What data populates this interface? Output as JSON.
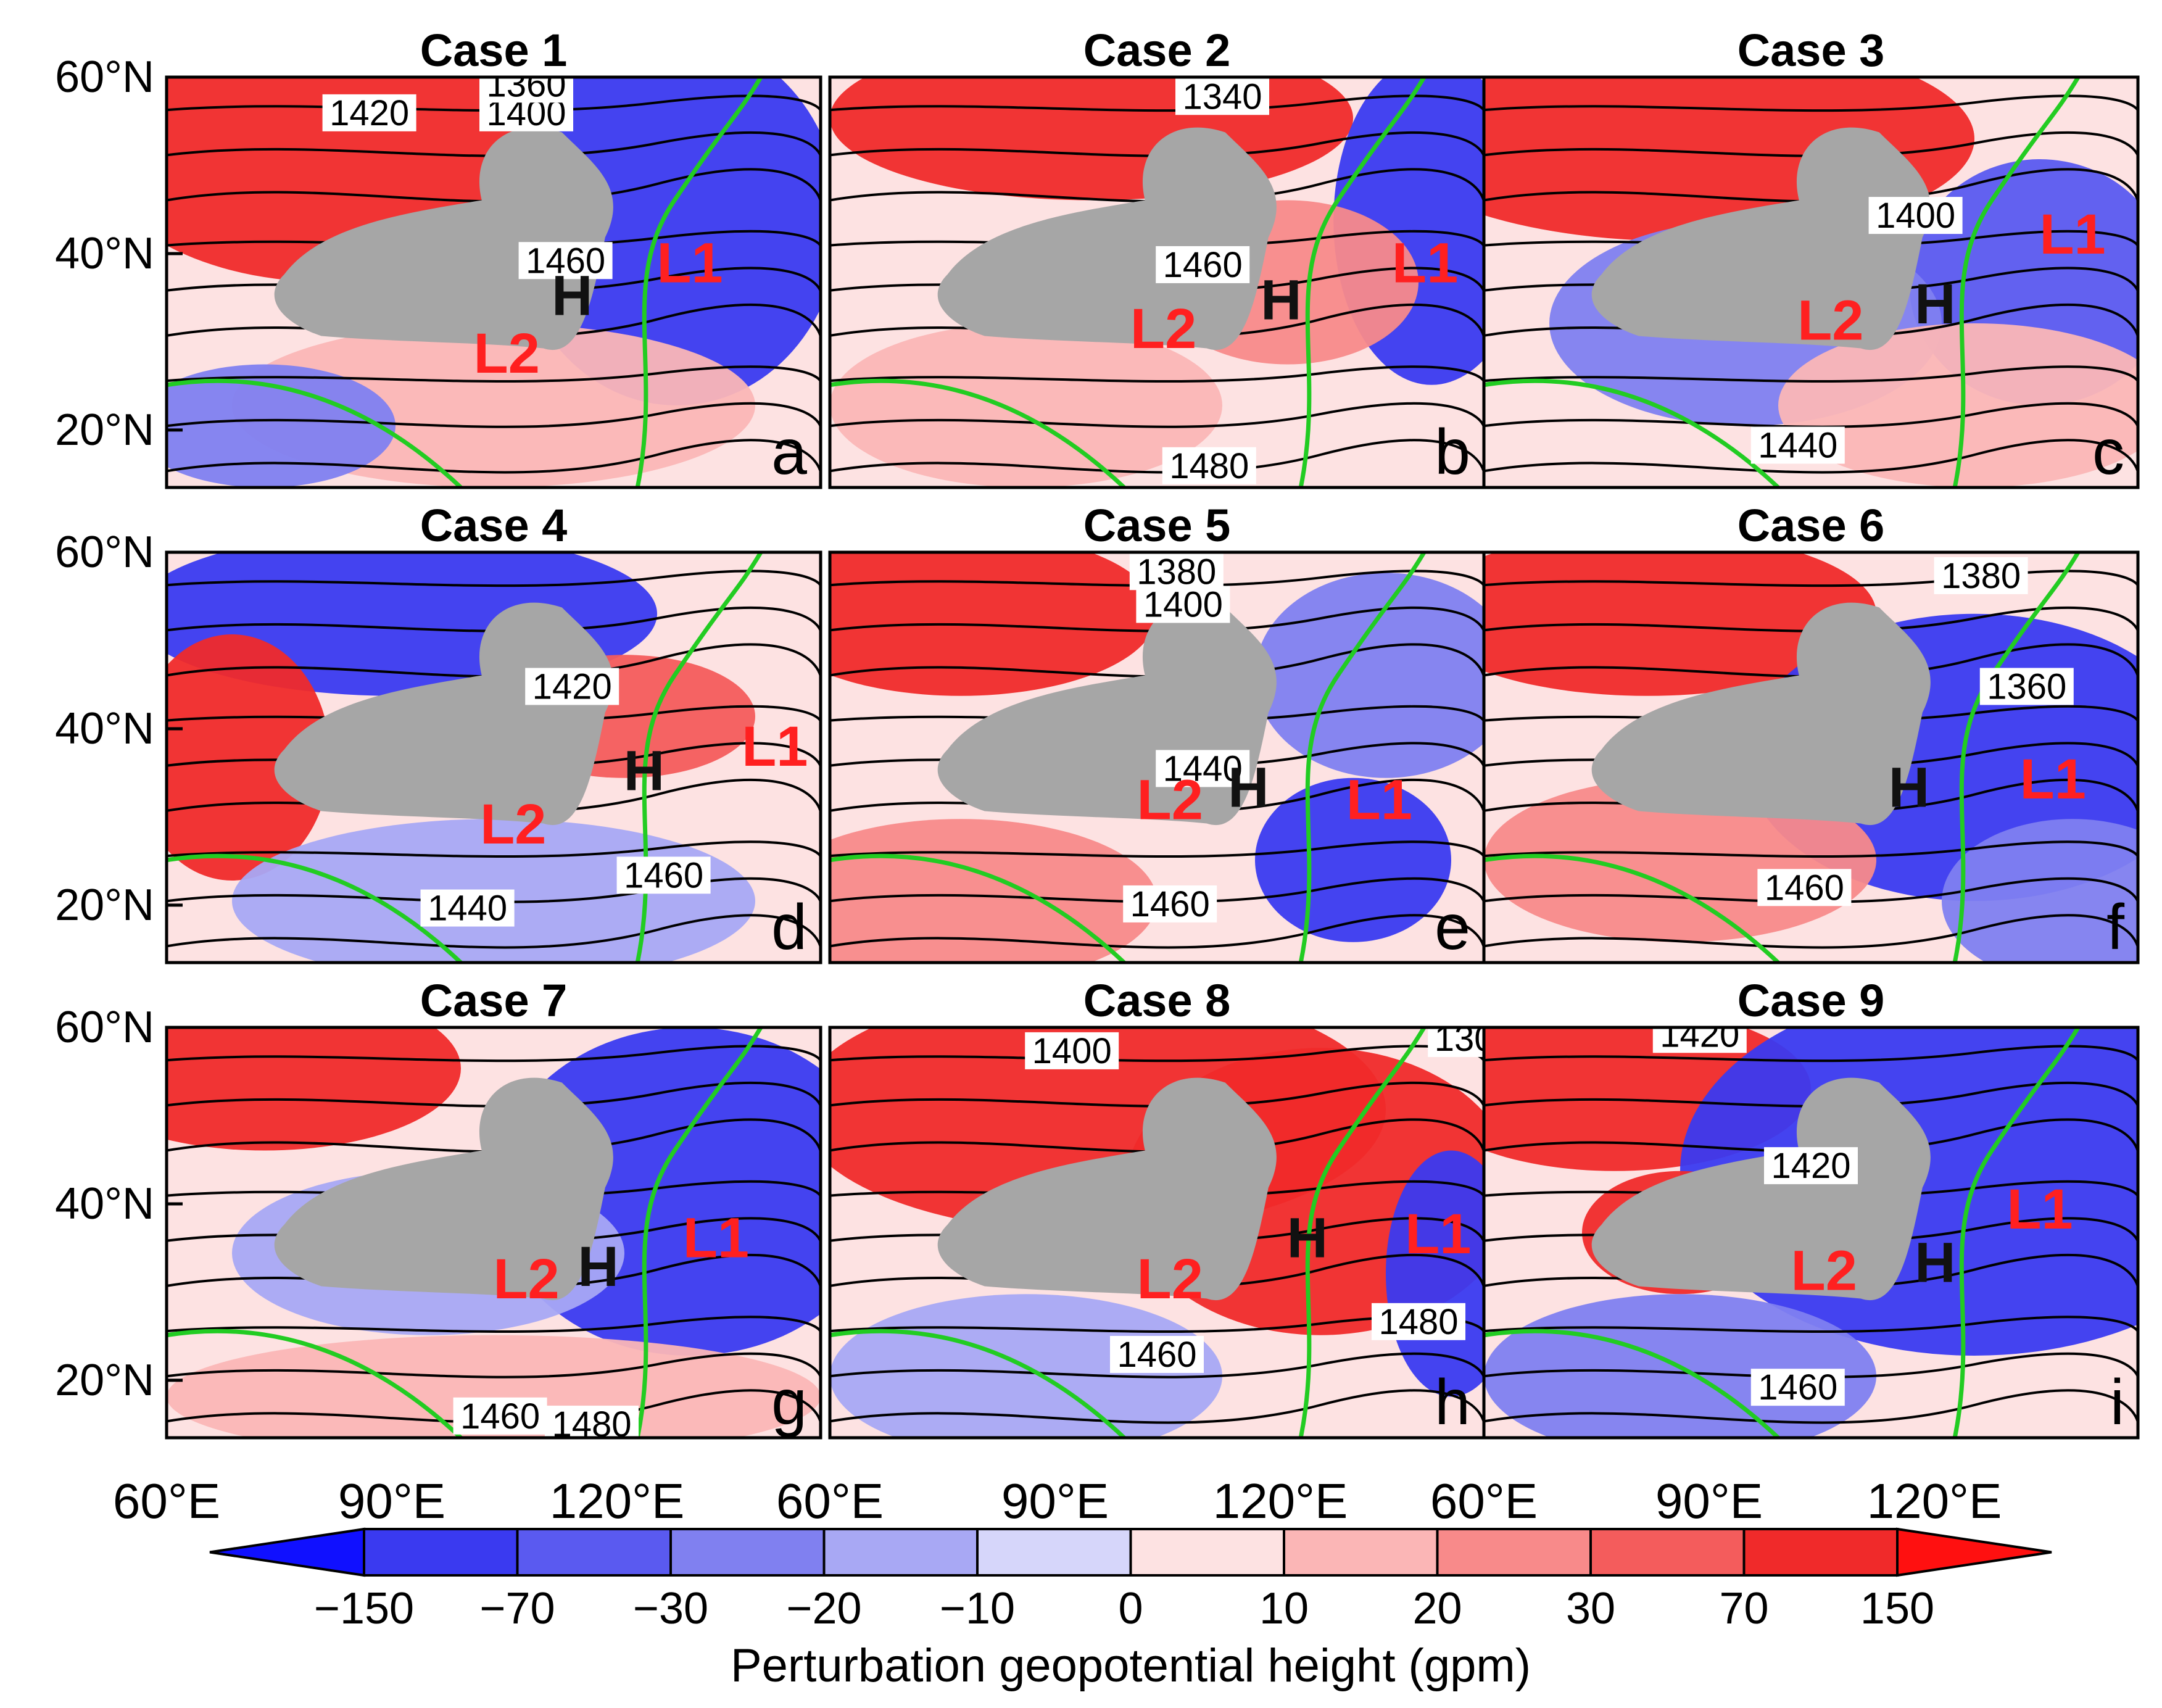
{
  "panels": [
    {
      "title": "Case  1",
      "letter": "a",
      "contour_labels": [
        "1420",
        "1400",
        "1360",
        "1460"
      ],
      "markers": {
        "H": "H",
        "L1": "L1",
        "L2": "L2"
      }
    },
    {
      "title": "Case  2",
      "letter": "b",
      "contour_labels": [
        "1340",
        "1460",
        "1480"
      ],
      "markers": {
        "H": "H",
        "L1": "L1",
        "L2": "L2"
      }
    },
    {
      "title": "Case  3",
      "letter": "c",
      "contour_labels": [
        "1400",
        "1440"
      ],
      "markers": {
        "H": "H",
        "L1": "L1",
        "L2": "L2"
      }
    },
    {
      "title": "Case  4",
      "letter": "d",
      "contour_labels": [
        "1420",
        "1440",
        "1460"
      ],
      "markers": {
        "H": "H",
        "L1": "L1",
        "L2": "L2"
      }
    },
    {
      "title": "Case  5",
      "letter": "e",
      "contour_labels": [
        "1380",
        "1400",
        "1440",
        "1460"
      ],
      "markers": {
        "H": "H",
        "L1": "L1",
        "L2": "L2"
      }
    },
    {
      "title": "Case  6",
      "letter": "f",
      "contour_labels": [
        "1380",
        "1360",
        "1460"
      ],
      "markers": {
        "H": "H",
        "L1": "L1"
      }
    },
    {
      "title": "Case  7",
      "letter": "g",
      "contour_labels": [
        "1460",
        "1480"
      ],
      "markers": {
        "H": "H",
        "L1": "L1",
        "L2": "L2"
      }
    },
    {
      "title": "Case  8",
      "letter": "h",
      "contour_labels": [
        "1400",
        "130",
        "1460",
        "1480"
      ],
      "markers": {
        "H": "H",
        "L1": "L1",
        "L2": "L2"
      }
    },
    {
      "title": "Case  9",
      "letter": "i",
      "contour_labels": [
        "1420",
        "1420",
        "1460"
      ],
      "markers": {
        "H": "H",
        "L1": "L1",
        "L2": "L2"
      }
    }
  ],
  "axes": {
    "lat_ticks": [
      "60°N",
      "40°N",
      "20°N"
    ],
    "lon_ticks": [
      "60°E",
      "90°E",
      "120°E",
      "60°E",
      "90°E",
      "120°E",
      "60°E",
      "90°E",
      "120°E"
    ]
  },
  "colorbar": {
    "labels": [
      "−150",
      "−70",
      "−30",
      "−20",
      "−10",
      "0",
      "10",
      "20",
      "30",
      "70",
      "150"
    ],
    "colors": [
      "#3a3af0",
      "#5a5af0",
      "#8080f0",
      "#a8a8f4",
      "#d6d6fa",
      "#fde2e2",
      "#fbb6b6",
      "#f88a8a",
      "#f45c5c",
      "#f02a2a"
    ],
    "end_low": "#1010ff",
    "end_high": "#ff1010",
    "title": "Perturbation geopotential height (gpm)"
  },
  "colors": {
    "terrain": "#a6a6a6",
    "coast": "#22cc22",
    "marker": "#ff2020",
    "high": "#111111"
  }
}
